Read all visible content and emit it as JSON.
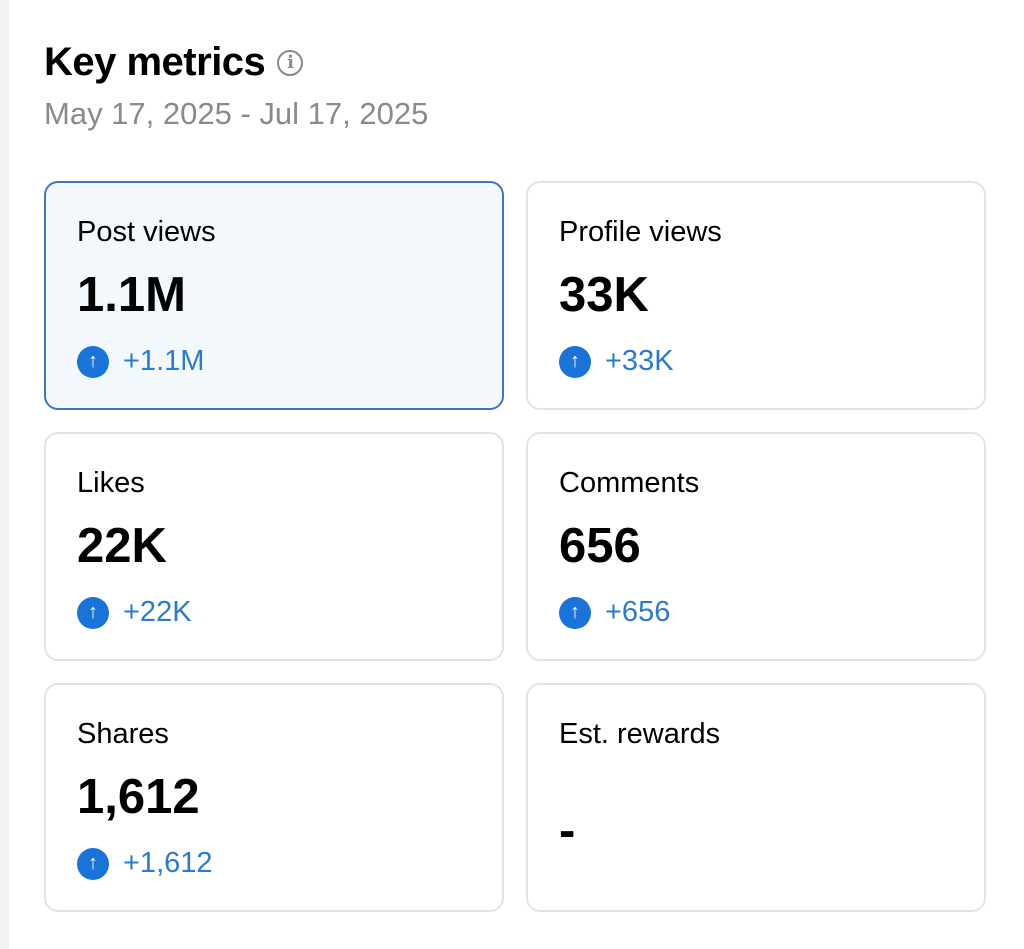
{
  "header": {
    "title": "Key metrics",
    "date_range": "May 17, 2025 - Jul 17, 2025"
  },
  "metrics": [
    {
      "label": "Post views",
      "value": "1.1M",
      "delta": "+1.1M",
      "selected": true
    },
    {
      "label": "Profile views",
      "value": "33K",
      "delta": "+33K"
    },
    {
      "label": "Likes",
      "value": "22K",
      "delta": "+22K"
    },
    {
      "label": "Comments",
      "value": "656",
      "delta": "+656"
    },
    {
      "label": "Shares",
      "value": "1,612",
      "delta": "+1,612"
    },
    {
      "label": "Est. rewards",
      "value": "-"
    }
  ],
  "colors": {
    "accent": "#1a73d9",
    "delta_text": "#2a7bd0",
    "selected_border": "#3f78b8",
    "selected_bg": "#f3f8fc"
  }
}
